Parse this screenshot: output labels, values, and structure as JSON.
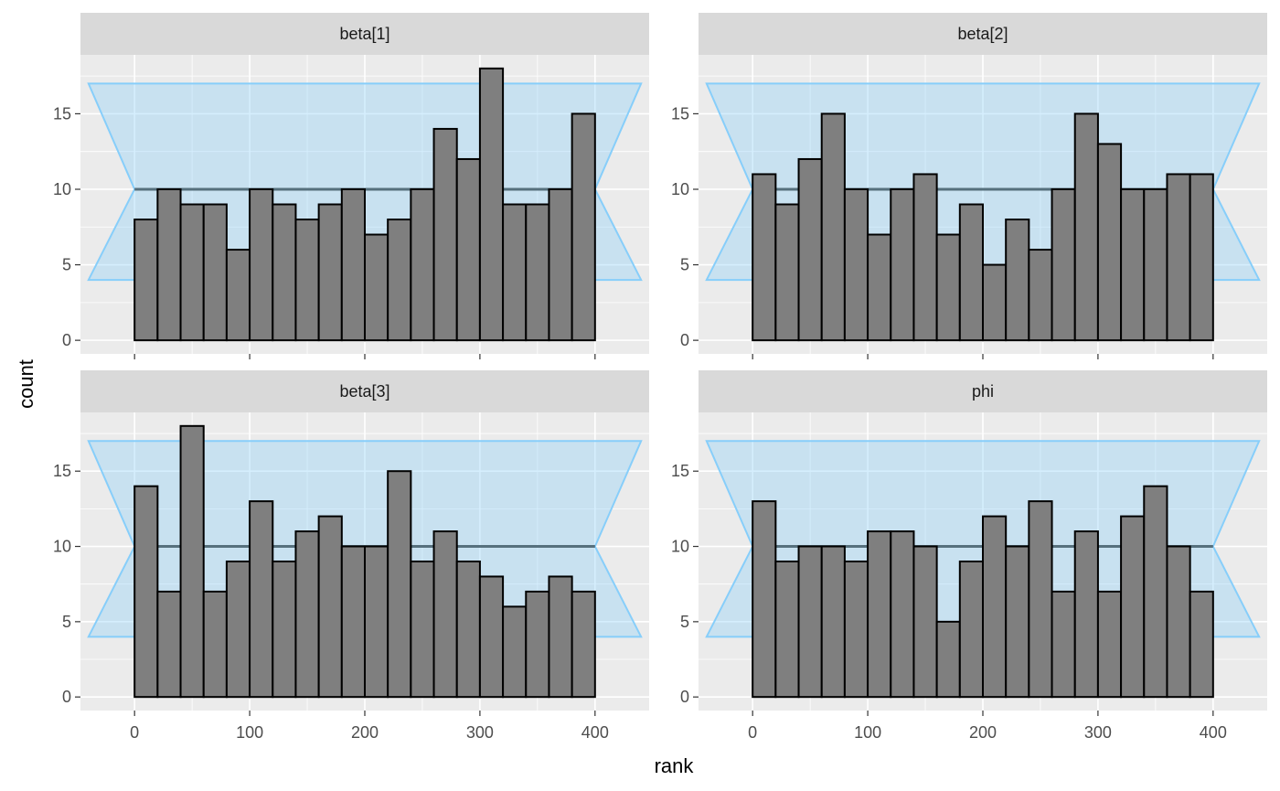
{
  "chart_data": {
    "type": "bar",
    "xlabel": "rank",
    "ylabel": "count",
    "xlim": [
      -47,
      447
    ],
    "ylim": [
      -0.9,
      18.9
    ],
    "x_ticks": [
      0,
      100,
      200,
      300,
      400
    ],
    "y_ticks": [
      0,
      5,
      10,
      15
    ],
    "grid": true,
    "bin_width": 20,
    "reference_band": {
      "lower": 4,
      "mean": 10,
      "upper": 17
    },
    "panels": [
      {
        "label": "beta[1]",
        "values": [
          8,
          10,
          9,
          9,
          6,
          10,
          9,
          8,
          9,
          10,
          7,
          8,
          10,
          14,
          12,
          18,
          9,
          9,
          10,
          15
        ]
      },
      {
        "label": "beta[2]",
        "values": [
          11,
          9,
          12,
          15,
          10,
          7,
          10,
          11,
          7,
          9,
          5,
          8,
          6,
          10,
          15,
          13,
          10,
          10,
          11,
          11
        ]
      },
      {
        "label": "beta[3]",
        "values": [
          14,
          7,
          18,
          7,
          9,
          13,
          9,
          11,
          12,
          10,
          10,
          15,
          9,
          11,
          9,
          8,
          6,
          7,
          8,
          7
        ]
      },
      {
        "label": "phi",
        "values": [
          13,
          9,
          10,
          10,
          9,
          11,
          11,
          10,
          5,
          9,
          12,
          10,
          13,
          7,
          11,
          7,
          12,
          14,
          10,
          7
        ]
      }
    ]
  }
}
